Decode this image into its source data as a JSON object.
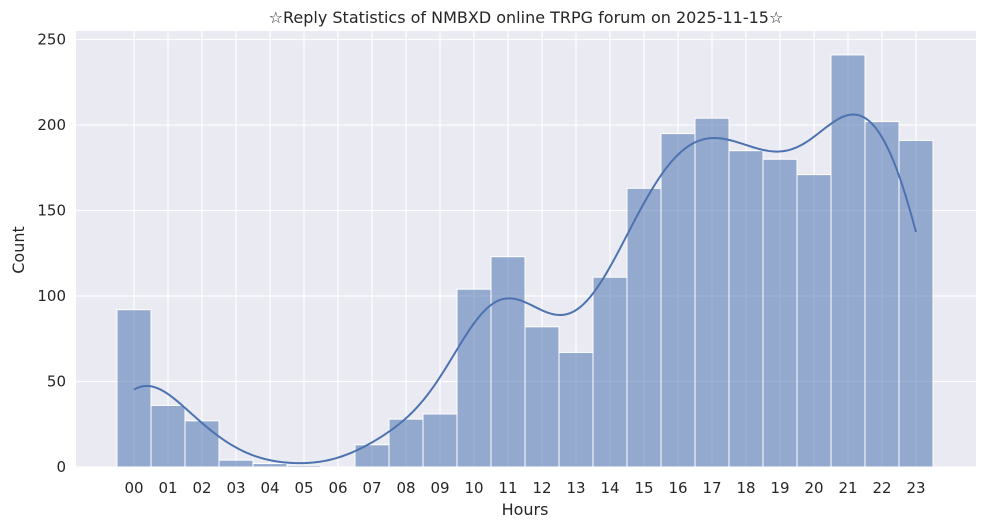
{
  "chart_data": {
    "type": "bar",
    "title": "☆Reply Statistics of NMBXD online TRPG forum on 2025-11-15☆",
    "xlabel": "Hours",
    "ylabel": "Count",
    "categories": [
      "00",
      "01",
      "02",
      "03",
      "04",
      "05",
      "06",
      "07",
      "08",
      "09",
      "10",
      "11",
      "12",
      "13",
      "14",
      "15",
      "16",
      "17",
      "18",
      "19",
      "20",
      "21",
      "22",
      "23"
    ],
    "values": [
      92,
      36,
      27,
      4,
      2,
      1,
      0,
      13,
      28,
      31,
      104,
      123,
      82,
      67,
      111,
      163,
      195,
      204,
      185,
      180,
      171,
      241,
      202,
      191
    ],
    "ylim": [
      0,
      255
    ],
    "yticks": [
      0,
      50,
      100,
      150,
      200,
      250
    ],
    "grid": true,
    "kde_line": true,
    "colors": {
      "bar_fill": "#4c72b0",
      "bar_opacity": "0.55",
      "kde_line": "#4c72b0",
      "plot_background": "#eaeaf2",
      "grid": "#ffffff"
    }
  }
}
